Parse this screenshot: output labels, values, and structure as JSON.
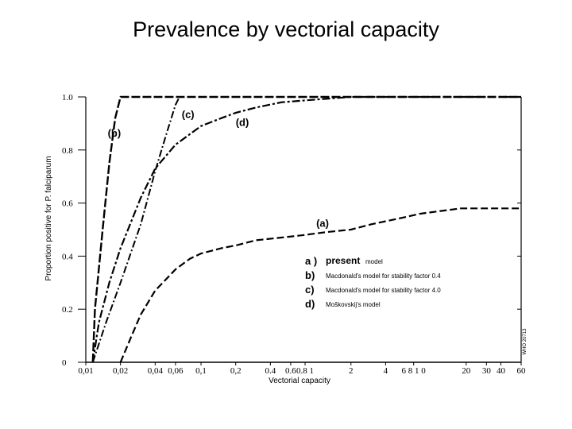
{
  "title": "Prevalence by vectorial capacity",
  "chart_data": {
    "type": "line",
    "xlabel": "Vectorial capacity",
    "ylabel": "Proportion positive for P. falciparum",
    "x_scale": "log",
    "xlim": [
      0.01,
      60
    ],
    "ylim": [
      0,
      1.0
    ],
    "y_ticks": [
      {
        "value": 0,
        "label": "0"
      },
      {
        "value": 0.2,
        "label": "0.2"
      },
      {
        "value": 0.4,
        "label": "0.4"
      },
      {
        "value": 0.6,
        "label": "0.6"
      },
      {
        "value": 0.8,
        "label": "0.8"
      },
      {
        "value": 1.0,
        "label": "1.0"
      }
    ],
    "x_ticks": [
      {
        "value": 0.01,
        "label": "0,01"
      },
      {
        "value": 0.02,
        "label": "0,02"
      },
      {
        "value": 0.04,
        "label": "0,04"
      },
      {
        "value": 0.06,
        "label": "0,06"
      },
      {
        "value": 0.1,
        "label": "0,1"
      },
      {
        "value": 0.2,
        "label": "0,2"
      },
      {
        "value": 0.4,
        "label": "0.4"
      },
      {
        "value": 0.6,
        "label": "0.6"
      },
      {
        "value": 0.8,
        "label": "0.8 1"
      },
      {
        "value": 2,
        "label": "2"
      },
      {
        "value": 4,
        "label": "4"
      },
      {
        "value": 7,
        "label": "6 8 1 0"
      },
      {
        "value": 20,
        "label": "20"
      },
      {
        "value": 30,
        "label": "30"
      },
      {
        "value": 40,
        "label": "40"
      },
      {
        "value": 60,
        "label": "60"
      }
    ],
    "series": [
      {
        "name": "(a)",
        "x": [
          0.02,
          0.025,
          0.03,
          0.04,
          0.06,
          0.08,
          0.1,
          0.15,
          0.2,
          0.3,
          0.5,
          0.8,
          1.2,
          2,
          3,
          5,
          8,
          12,
          18,
          25,
          60
        ],
        "y": [
          0.0,
          0.1,
          0.18,
          0.27,
          0.35,
          0.39,
          0.41,
          0.43,
          0.44,
          0.46,
          0.47,
          0.48,
          0.49,
          0.5,
          0.52,
          0.54,
          0.56,
          0.57,
          0.58,
          0.58,
          0.58
        ]
      },
      {
        "name": "(b)",
        "x": [
          0.0115,
          0.012,
          0.014,
          0.016,
          0.018,
          0.02,
          60
        ],
        "y": [
          0.0,
          0.2,
          0.5,
          0.75,
          0.92,
          1.0,
          1.0
        ]
      },
      {
        "name": "(c)",
        "x": [
          0.0115,
          0.015,
          0.02,
          0.03,
          0.04,
          0.05,
          0.06,
          0.065
        ],
        "y": [
          0.0,
          0.15,
          0.3,
          0.52,
          0.72,
          0.86,
          0.97,
          1.0
        ]
      },
      {
        "name": "(d)",
        "x": [
          0.0115,
          0.013,
          0.016,
          0.02,
          0.03,
          0.04,
          0.06,
          0.1,
          0.15,
          0.2,
          0.3,
          0.5,
          1,
          2,
          5,
          60
        ],
        "y": [
          0.0,
          0.15,
          0.3,
          0.43,
          0.62,
          0.73,
          0.82,
          0.89,
          0.92,
          0.94,
          0.96,
          0.98,
          0.99,
          1.0,
          1.0,
          1.0
        ]
      }
    ],
    "curve_labels": [
      {
        "text": "(a)",
        "x": 1.0,
        "y": 0.51
      },
      {
        "text": "(b)",
        "x": 0.0155,
        "y": 0.85
      },
      {
        "text": "(c)",
        "x": 0.068,
        "y": 0.92
      },
      {
        "text": "(d)",
        "x": 0.2,
        "y": 0.89
      }
    ],
    "legend": {
      "position": "lower-right",
      "entries": [
        {
          "key": "a )",
          "text": "present",
          "suffix": "model"
        },
        {
          "key": "b)",
          "text": "Macdonald's    model   for   stability   factor  0.4"
        },
        {
          "key": "c)",
          "text": "Macdonald's    model   for   stability   factor  4.0"
        },
        {
          "key": "d)",
          "text": "Moškovskij's    model"
        }
      ]
    },
    "side_note": "WHO 20713",
    "grid": false
  }
}
